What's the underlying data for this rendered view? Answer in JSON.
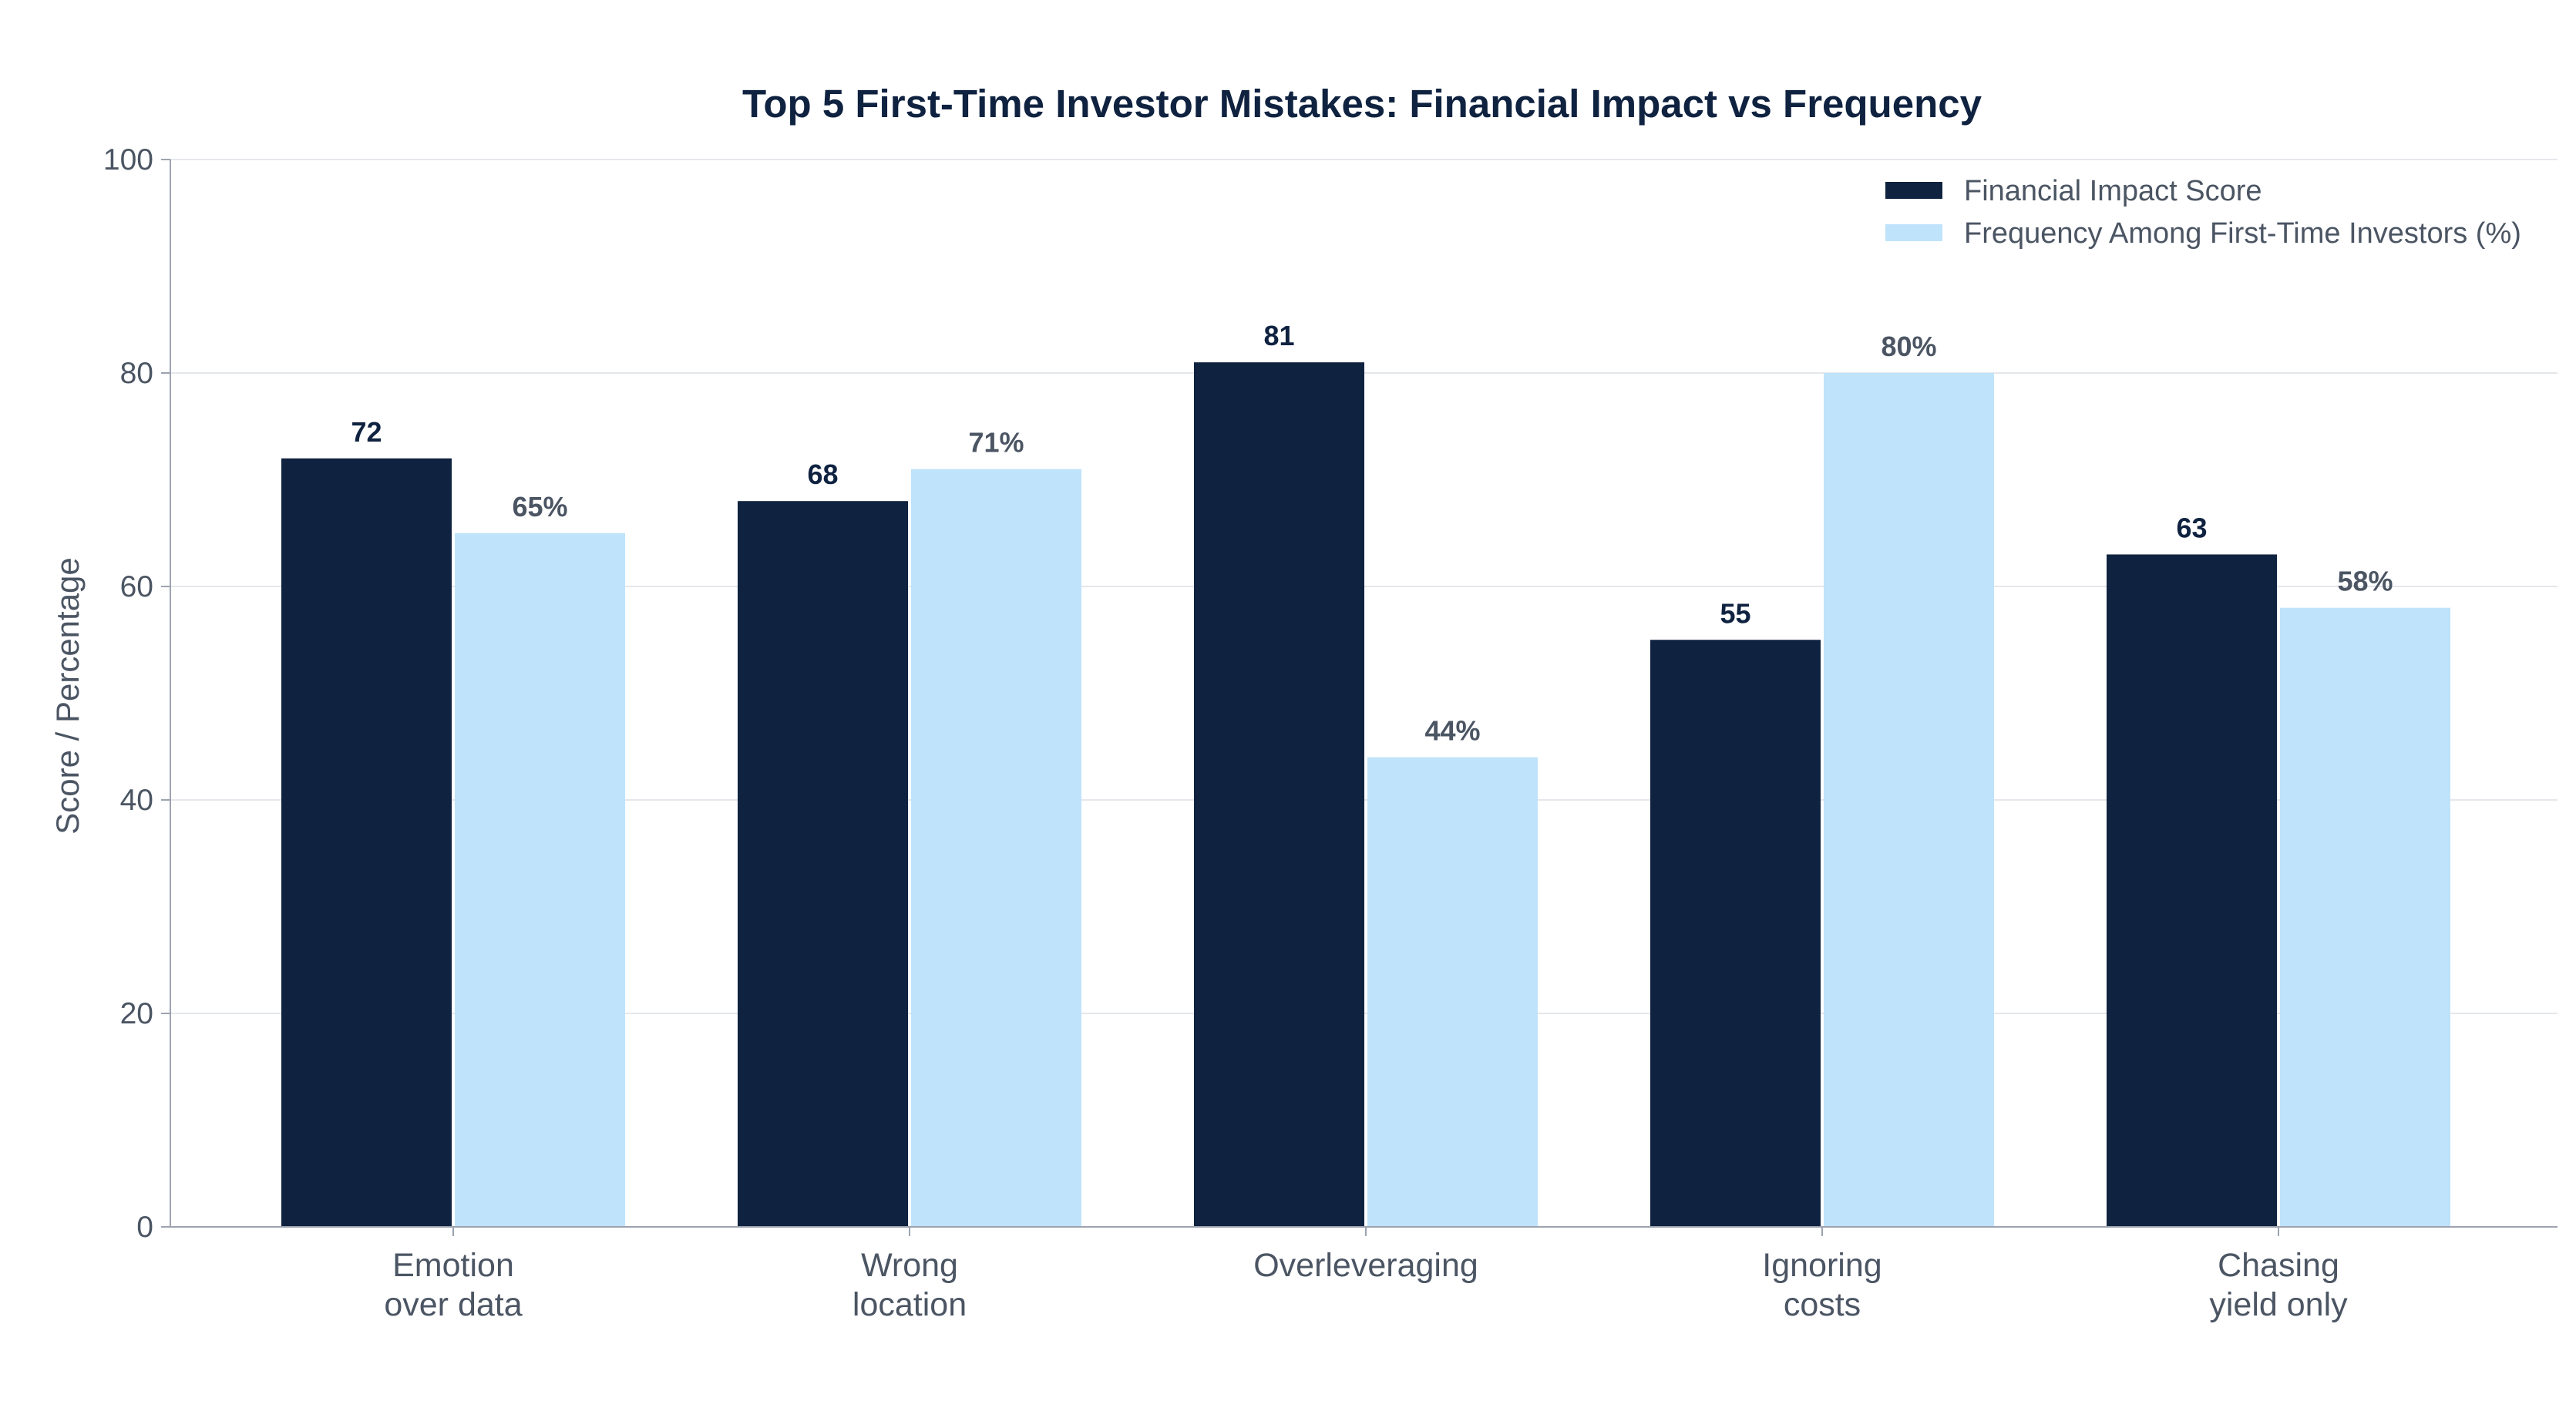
{
  "chart_data": {
    "type": "bar",
    "title": "Top 5 First-Time Investor Mistakes: Financial Impact vs Frequency",
    "xlabel": "",
    "ylabel": "Score / Percentage",
    "ylim": [
      0,
      100
    ],
    "yticks": [
      0,
      20,
      40,
      60,
      80,
      100
    ],
    "grid": true,
    "legend_position": "top-right",
    "categories": [
      [
        "Emotion",
        "over data"
      ],
      [
        "Wrong",
        "location"
      ],
      [
        "Overleveraging"
      ],
      [
        "Ignoring",
        "costs"
      ],
      [
        "Chasing",
        "yield only"
      ]
    ],
    "series": [
      {
        "name": "Financial Impact Score",
        "color": "#0f2240",
        "label_color": "#0f2240",
        "values": [
          72,
          68,
          81,
          55,
          63
        ],
        "labels": [
          "72",
          "68",
          "81",
          "55",
          "63"
        ]
      },
      {
        "name": "Frequency Among First-Time Investors (%)",
        "color": "#bfe3fb",
        "label_color": "#4b5563",
        "values": [
          65,
          71,
          44,
          80,
          58
        ],
        "labels": [
          "65%",
          "71%",
          "44%",
          "80%",
          "58%"
        ]
      }
    ]
  }
}
